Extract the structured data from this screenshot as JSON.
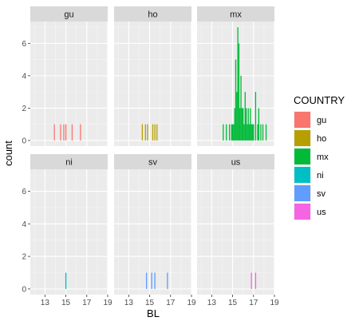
{
  "chart_data": {
    "type": "bar",
    "subtype": "faceted-histogram",
    "xlabel": "BL",
    "ylabel": "count",
    "xlim": [
      11.6,
      19.0
    ],
    "ylim": [
      -0.35,
      7.35
    ],
    "x_ticks": [
      13,
      15,
      17,
      19
    ],
    "y_ticks": [
      0,
      2,
      4,
      6
    ],
    "grid": true,
    "legend": {
      "title": "COUNTRY",
      "position": "right",
      "items": [
        {
          "label": "gu",
          "color": "#F8766D"
        },
        {
          "label": "ho",
          "color": "#B79F00"
        },
        {
          "label": "mx",
          "color": "#00BA38"
        },
        {
          "label": "ni",
          "color": "#00BFC4"
        },
        {
          "label": "sv",
          "color": "#619CFF"
        },
        {
          "label": "us",
          "color": "#F564E3"
        }
      ]
    },
    "facets": [
      {
        "name": "gu",
        "color": "#F8766D",
        "bins": [
          {
            "x": 13.9,
            "count": 1
          },
          {
            "x": 14.5,
            "count": 1
          },
          {
            "x": 14.8,
            "count": 1
          },
          {
            "x": 15.0,
            "count": 1
          },
          {
            "x": 15.6,
            "count": 1
          },
          {
            "x": 16.4,
            "count": 1
          }
        ]
      },
      {
        "name": "ho",
        "color": "#B79F00",
        "bins": [
          {
            "x": 14.3,
            "count": 1
          },
          {
            "x": 14.6,
            "count": 1
          },
          {
            "x": 14.8,
            "count": 1
          },
          {
            "x": 15.3,
            "count": 1
          },
          {
            "x": 15.5,
            "count": 1
          },
          {
            "x": 15.7,
            "count": 1
          }
        ]
      },
      {
        "name": "mx",
        "color": "#00BA38",
        "bins": [
          {
            "x": 14.1,
            "count": 1
          },
          {
            "x": 14.4,
            "count": 1
          },
          {
            "x": 14.7,
            "count": 1
          },
          {
            "x": 14.9,
            "count": 1
          },
          {
            "x": 15.0,
            "count": 1
          },
          {
            "x": 15.1,
            "count": 1
          },
          {
            "x": 15.2,
            "count": 2
          },
          {
            "x": 15.3,
            "count": 5
          },
          {
            "x": 15.4,
            "count": 3
          },
          {
            "x": 15.5,
            "count": 7
          },
          {
            "x": 15.6,
            "count": 6
          },
          {
            "x": 15.7,
            "count": 2
          },
          {
            "x": 15.8,
            "count": 4
          },
          {
            "x": 15.9,
            "count": 2
          },
          {
            "x": 16.0,
            "count": 2
          },
          {
            "x": 16.1,
            "count": 1
          },
          {
            "x": 16.2,
            "count": 3
          },
          {
            "x": 16.3,
            "count": 2
          },
          {
            "x": 16.4,
            "count": 1
          },
          {
            "x": 16.5,
            "count": 2
          },
          {
            "x": 16.6,
            "count": 1
          },
          {
            "x": 16.7,
            "count": 2
          },
          {
            "x": 16.8,
            "count": 1
          },
          {
            "x": 16.9,
            "count": 1
          },
          {
            "x": 17.0,
            "count": 1
          },
          {
            "x": 17.2,
            "count": 3
          },
          {
            "x": 17.4,
            "count": 1
          },
          {
            "x": 17.5,
            "count": 2
          },
          {
            "x": 17.7,
            "count": 1
          },
          {
            "x": 17.9,
            "count": 1
          },
          {
            "x": 18.2,
            "count": 1
          }
        ]
      },
      {
        "name": "ni",
        "color": "#00BFC4",
        "bins": [
          {
            "x": 15.0,
            "count": 1
          }
        ]
      },
      {
        "name": "sv",
        "color": "#619CFF",
        "bins": [
          {
            "x": 14.7,
            "count": 1
          },
          {
            "x": 15.2,
            "count": 1
          },
          {
            "x": 15.5,
            "count": 1
          },
          {
            "x": 16.7,
            "count": 1
          }
        ]
      },
      {
        "name": "us",
        "color": "#F564E3",
        "bins": [
          {
            "x": 16.8,
            "count": 1
          },
          {
            "x": 17.2,
            "count": 1
          }
        ]
      }
    ]
  }
}
